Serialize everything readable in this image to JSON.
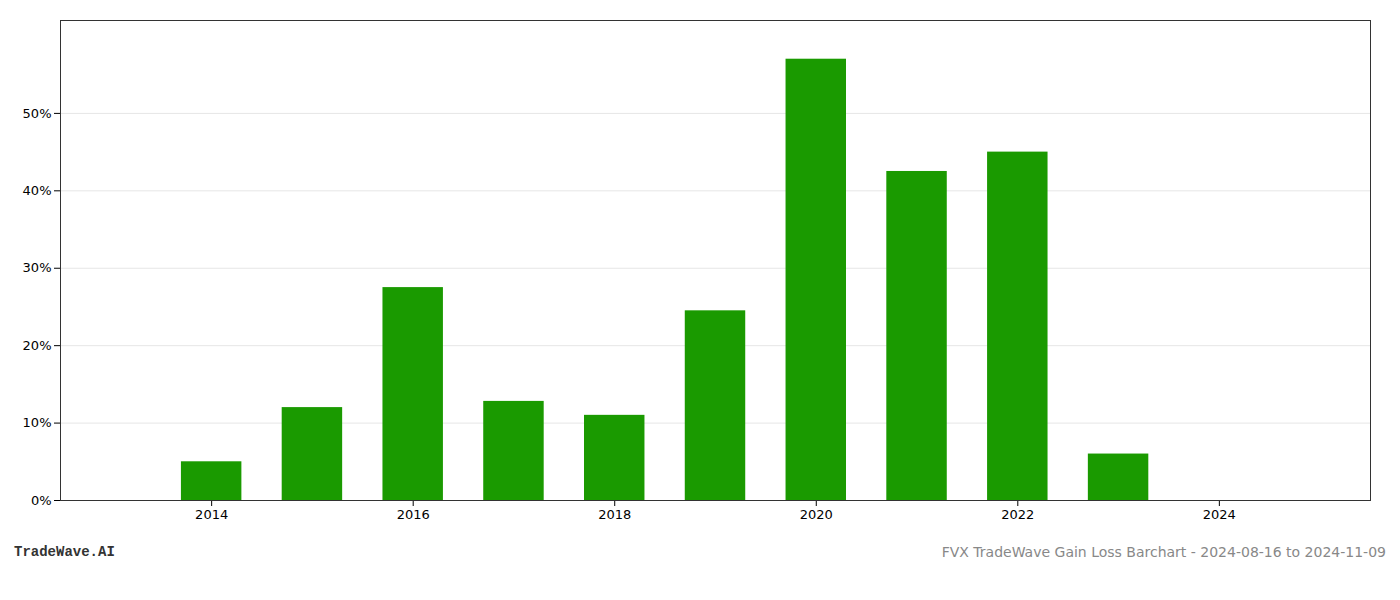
{
  "chart_data": {
    "type": "bar",
    "title": "FVX TradeWave Gain Loss Barchart - 2024-08-16 to 2024-11-09",
    "annotations": [
      "TradeWave.AI"
    ],
    "x": [
      2014,
      2015,
      2016,
      2017,
      2018,
      2019,
      2020,
      2021,
      2022,
      2023,
      2024
    ],
    "values": [
      0.05,
      0.12,
      0.275,
      0.128,
      0.11,
      0.245,
      0.57,
      0.425,
      0.45,
      0.06,
      0.0
    ],
    "color": "#1a9a00",
    "xlim": [
      2012.5,
      2025.5
    ],
    "xticks": [
      2014,
      2016,
      2018,
      2020,
      2022,
      2024
    ],
    "ylim": [
      0,
      0.62
    ],
    "yticks": [
      {
        "value": 0.0,
        "label": "0%"
      },
      {
        "value": 0.1,
        "label": "10%"
      },
      {
        "value": 0.2,
        "label": "20%"
      },
      {
        "value": 0.3,
        "label": "30%"
      },
      {
        "value": 0.4,
        "label": "40%"
      },
      {
        "value": 0.5,
        "label": "50%"
      }
    ],
    "grid": true
  }
}
